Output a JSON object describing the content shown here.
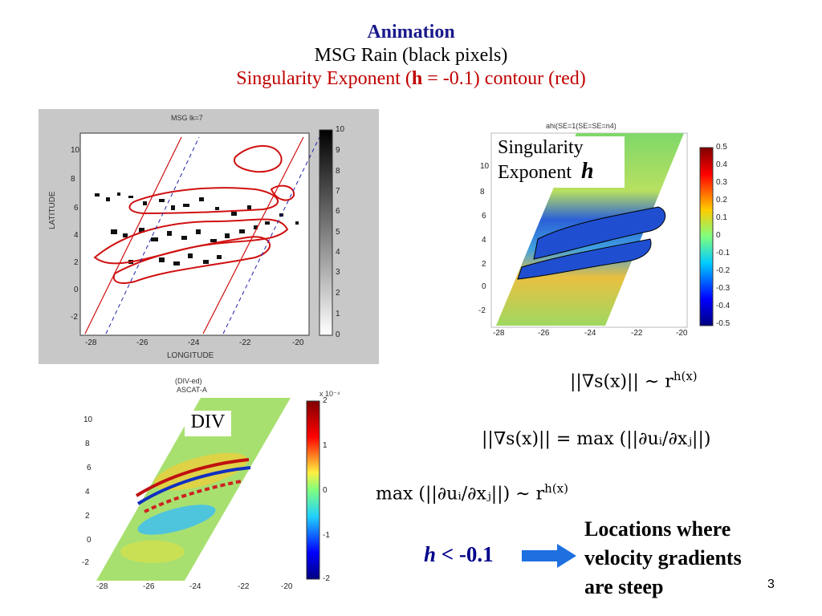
{
  "title": {
    "line1": "Animation",
    "line2": "MSG Rain (black pixels)",
    "line3_prefix": "Singularity Exponent (",
    "line3_h": "h",
    "line3_suffix": " = -0.1) contour (red)"
  },
  "msg_panel": {
    "title": "MSG  lk=7",
    "ylabel": "LATITUDE",
    "xlabel": "LONGITUDE",
    "yticks": [
      "10",
      "8",
      "6",
      "4",
      "2",
      "0",
      "-2"
    ],
    "xticks": [
      "-28",
      "-26",
      "-24",
      "-22",
      "-20"
    ],
    "colorbar_ticks": [
      "10",
      "9",
      "8",
      "7",
      "6",
      "5",
      "4",
      "3",
      "2",
      "1",
      "0"
    ]
  },
  "se_panel": {
    "title": "ahi(SE=1(SE=SE=n4)",
    "label_line1": "Singularity",
    "label_line2": "Exponent",
    "label_h": "h",
    "yticks": [
      "10",
      "8",
      "6",
      "4",
      "2",
      "0",
      "-2"
    ],
    "xticks": [
      "-28",
      "-26",
      "-24",
      "-22",
      "-20"
    ],
    "colorbar_ticks": [
      "0.5",
      "0.4",
      "0.3",
      "0.2",
      "0.1",
      "0",
      "-0.1",
      "-0.2",
      "-0.3",
      "-0.4",
      "-0.5"
    ]
  },
  "div_panel": {
    "title_line1": "(DIV-ed)",
    "title_line2": "ASCAT-A",
    "label": "DIV",
    "exponent": "x 10⁻⁴",
    "yticks": [
      "10",
      "8",
      "6",
      "4",
      "2",
      "0",
      "-2"
    ],
    "xticks": [
      "-28",
      "-26",
      "-24",
      "-22",
      "-20"
    ],
    "colorbar_ticks": [
      "2",
      "1",
      "0",
      "-1",
      "-2"
    ]
  },
  "equations": {
    "eq1": "||∇s(x)|| ∼ r",
    "eq1_sup": "h(x)",
    "eq2": "||∇s(x)|| = max (||∂uᵢ/∂xⱼ||)",
    "eq3": "max (||∂uᵢ/∂xⱼ||) ∼ r",
    "eq3_sup": "h(x)"
  },
  "condition": {
    "h": "h",
    "text": " < -0.1"
  },
  "locations": {
    "line1": "Locations where",
    "line2": "velocity gradients",
    "line3": "are steep"
  },
  "page_number": "3",
  "colors": {
    "title_blue": "#1a1a8c",
    "title_red": "#c00000",
    "arrow_blue": "#1e6fe0",
    "contour_red": "#d01010"
  }
}
